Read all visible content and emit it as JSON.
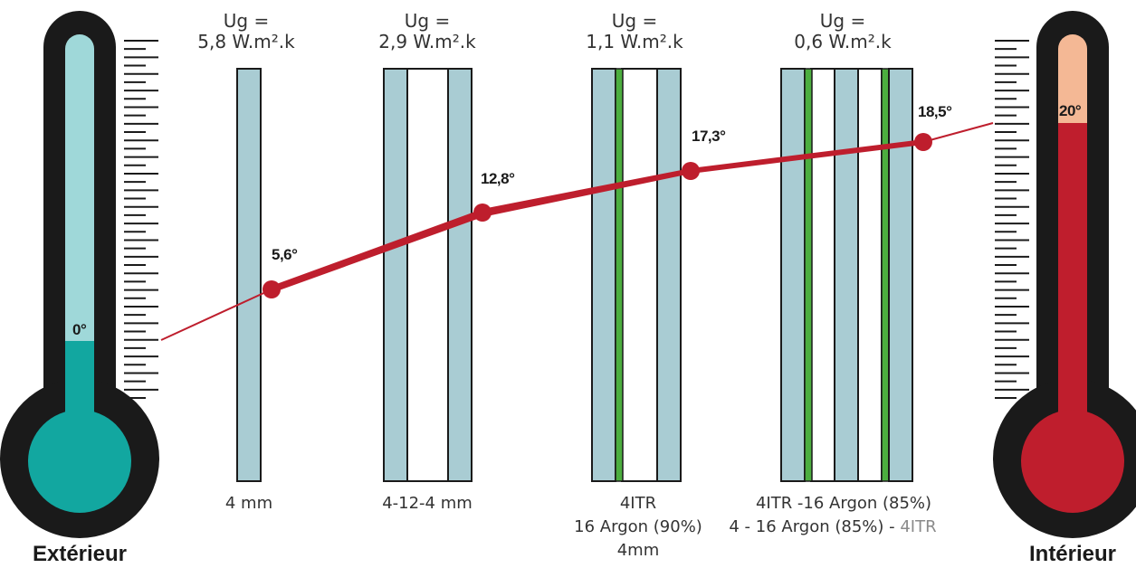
{
  "colors": {
    "cold": "#12a7a0",
    "cold_light": "#9fd8d9",
    "hot": "#bf1e2d",
    "hot_light": "#f4b895",
    "glass": "#a9ccd3",
    "coating": "#4cae3f",
    "frame": "#1a1a1a",
    "line": "#be1e2d"
  },
  "thermometers": {
    "left": {
      "label": "Extérieur",
      "temperature": "0°",
      "fill_level": 0.45
    },
    "right": {
      "label": "Intérieur",
      "temperature": "20°",
      "fill_level": 0.85
    }
  },
  "glazings": [
    {
      "ug_line1": "Ug =",
      "ug_line2": "5,8 W.m².k",
      "desc": [
        "4 mm"
      ],
      "desc_suffix": "",
      "point_temp": "5,6°"
    },
    {
      "ug_line1": "Ug =",
      "ug_line2": "2,9 W.m².k",
      "desc": [
        "4-12-4 mm"
      ],
      "desc_suffix": "",
      "point_temp": "12,8°"
    },
    {
      "ug_line1": "Ug =",
      "ug_line2": "1,1 W.m².k",
      "desc": [
        "4ITR",
        "16 Argon (90%)",
        "4mm"
      ],
      "desc_suffix": "",
      "point_temp": "17,3°"
    },
    {
      "ug_line1": "Ug =",
      "ug_line2": "0,6 W.m².k",
      "desc": [
        "4ITR -16 Argon (85%)",
        "4 - 16 Argon (85%) - "
      ],
      "desc_suffix": "4ITR",
      "point_temp": "18,5°"
    }
  ]
}
